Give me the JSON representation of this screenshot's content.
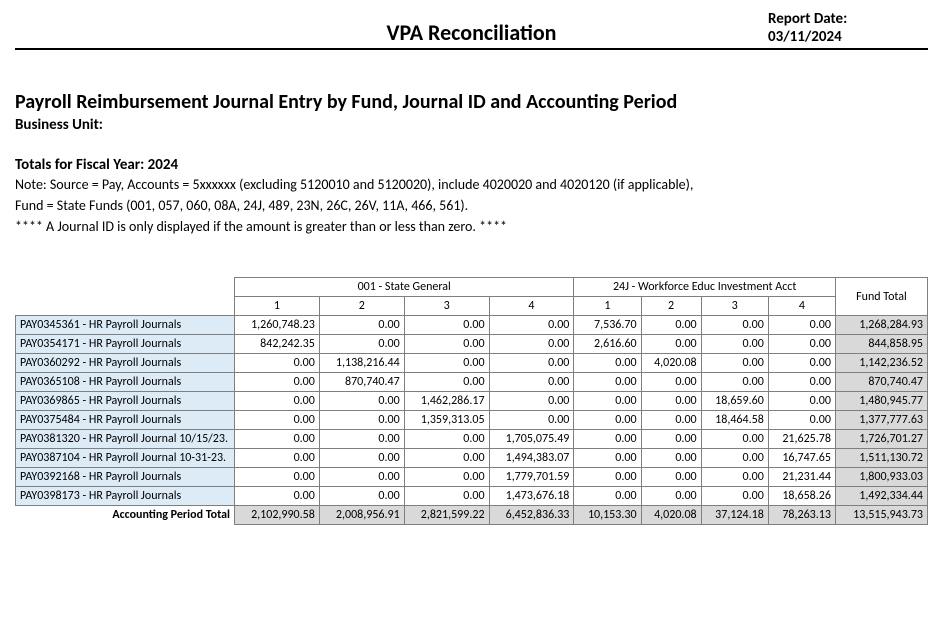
{
  "header": {
    "title": "VPA Reconciliation",
    "date_label": "Report Date:",
    "date_value": "03/11/2024"
  },
  "report": {
    "title": "Payroll Reimbursement Journal Entry by Fund, Journal ID and Accounting Period",
    "business_unit_label": "Business Unit:",
    "fy_label": "Totals for Fiscal Year: 2024",
    "note_line1": "Note: Source = Pay, Accounts = 5xxxxxx (excluding 5120010 and 5120020), include 4020020 and 4020120 (if applicable),",
    "note_line2": "Fund = State Funds (001, 057, 060, 08A, 24J, 489, 23N, 26C, 26V, 11A, 466, 561).",
    "note_line3": "**** A Journal ID is only displayed if the amount is greater than or less than zero. ****"
  },
  "table": {
    "fund_groups": [
      {
        "label": "001 - State General",
        "periods": [
          "1",
          "2",
          "3",
          "4"
        ]
      },
      {
        "label": "24J - Workforce Educ Investment Acct",
        "periods": [
          "1",
          "2",
          "3",
          "4"
        ]
      }
    ],
    "fund_total_label": "Fund Total",
    "rows": [
      {
        "label": "PAY0345361 - HR Payroll Journals",
        "vals": [
          "1,260,748.23",
          "0.00",
          "0.00",
          "0.00",
          "7,536.70",
          "0.00",
          "0.00",
          "0.00"
        ],
        "total": "1,268,284.93"
      },
      {
        "label": "PAY0354171 - HR Payroll Journals",
        "vals": [
          "842,242.35",
          "0.00",
          "0.00",
          "0.00",
          "2,616.60",
          "0.00",
          "0.00",
          "0.00"
        ],
        "total": "844,858.95"
      },
      {
        "label": "PAY0360292 - HR Payroll Journals",
        "vals": [
          "0.00",
          "1,138,216.44",
          "0.00",
          "0.00",
          "0.00",
          "4,020.08",
          "0.00",
          "0.00"
        ],
        "total": "1,142,236.52"
      },
      {
        "label": "PAY0365108 - HR Payroll Journals",
        "vals": [
          "0.00",
          "870,740.47",
          "0.00",
          "0.00",
          "0.00",
          "0.00",
          "0.00",
          "0.00"
        ],
        "total": "870,740.47"
      },
      {
        "label": "PAY0369865 - HR Payroll Journals",
        "vals": [
          "0.00",
          "0.00",
          "1,462,286.17",
          "0.00",
          "0.00",
          "0.00",
          "18,659.60",
          "0.00"
        ],
        "total": "1,480,945.77"
      },
      {
        "label": "PAY0375484 - HR Payroll Journals",
        "vals": [
          "0.00",
          "0.00",
          "1,359,313.05",
          "0.00",
          "0.00",
          "0.00",
          "18,464.58",
          "0.00"
        ],
        "total": "1,377,777.63"
      },
      {
        "label": "PAY0381320 - HR Payroll Journal 10/15/23.",
        "vals": [
          "0.00",
          "0.00",
          "0.00",
          "1,705,075.49",
          "0.00",
          "0.00",
          "0.00",
          "21,625.78"
        ],
        "total": "1,726,701.27"
      },
      {
        "label": "PAY0387104 - HR Payroll Journal 10-31-23.",
        "vals": [
          "0.00",
          "0.00",
          "0.00",
          "1,494,383.07",
          "0.00",
          "0.00",
          "0.00",
          "16,747.65"
        ],
        "total": "1,511,130.72"
      },
      {
        "label": "PAY0392168 - HR Payroll Journals",
        "vals": [
          "0.00",
          "0.00",
          "0.00",
          "1,779,701.59",
          "0.00",
          "0.00",
          "0.00",
          "21,231.44"
        ],
        "total": "1,800,933.03"
      },
      {
        "label": "PAY0398173 - HR Payroll Journals",
        "vals": [
          "0.00",
          "0.00",
          "0.00",
          "1,473,676.18",
          "0.00",
          "0.00",
          "0.00",
          "18,658.26"
        ],
        "total": "1,492,334.44"
      }
    ],
    "period_total_label": "Accounting Period Total",
    "period_totals": [
      "2,102,990.58",
      "2,008,956.91",
      "2,821,599.22",
      "6,452,836.33",
      "10,153.30",
      "4,020.08",
      "37,124.18",
      "78,263.13"
    ],
    "grand_total": "13,515,943.73"
  },
  "style": {
    "row_label_bg": "#ddebf7",
    "total_bg": "#d9d9d9",
    "border_color": "#7f7f7f"
  }
}
